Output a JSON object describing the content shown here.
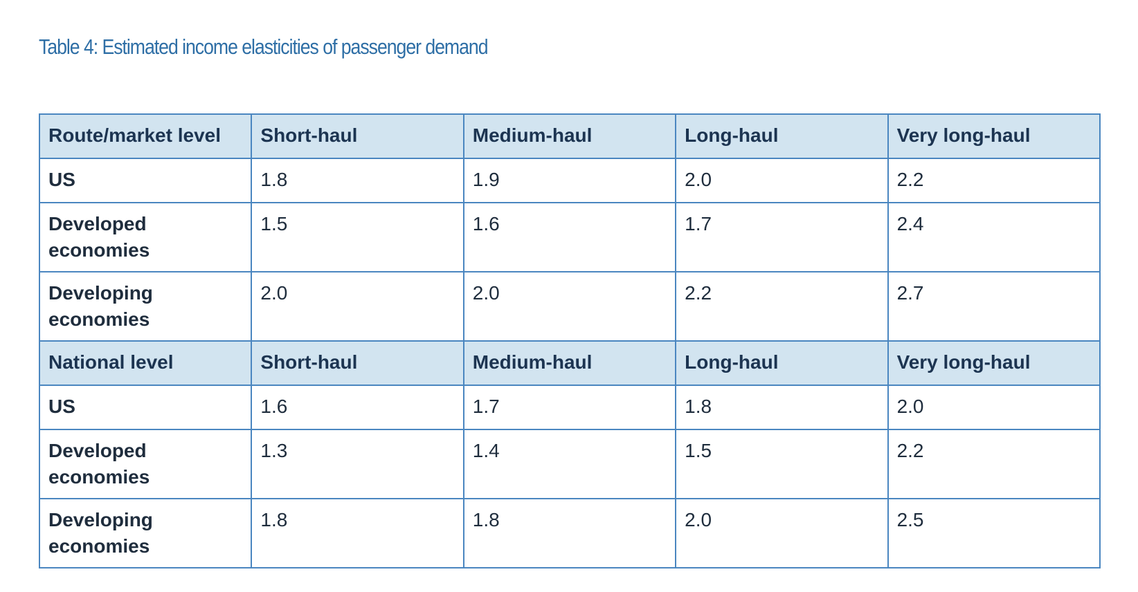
{
  "caption": "Table 4: Estimated income elasticities of passenger demand",
  "sections": [
    {
      "header": [
        "Route/market level",
        "Short-haul",
        "Medium-haul",
        "Long-haul",
        "Very long-haul"
      ],
      "rows": [
        {
          "label": "US",
          "values": [
            "1.8",
            "1.9",
            "2.0",
            "2.2"
          ]
        },
        {
          "label": "Developed economies",
          "values": [
            "1.5",
            "1.6",
            "1.7",
            "2.4"
          ]
        },
        {
          "label": "Developing economies",
          "values": [
            "2.0",
            "2.0",
            "2.2",
            "2.7"
          ]
        }
      ]
    },
    {
      "header": [
        "National level",
        "Short-haul",
        "Medium-haul",
        "Long-haul",
        "Very long-haul"
      ],
      "rows": [
        {
          "label": "US",
          "values": [
            "1.6",
            "1.7",
            "1.8",
            "2.0"
          ]
        },
        {
          "label": "Developed economies",
          "values": [
            "1.3",
            "1.4",
            "1.5",
            "2.2"
          ]
        },
        {
          "label": "Developing economies",
          "values": [
            "1.8",
            "1.8",
            "2.0",
            "2.5"
          ]
        }
      ]
    }
  ],
  "colors": {
    "caption": "#2f6fa6",
    "border": "#4a86c0",
    "header_background": "#d2e4f0",
    "header_text": "#1c3451"
  }
}
